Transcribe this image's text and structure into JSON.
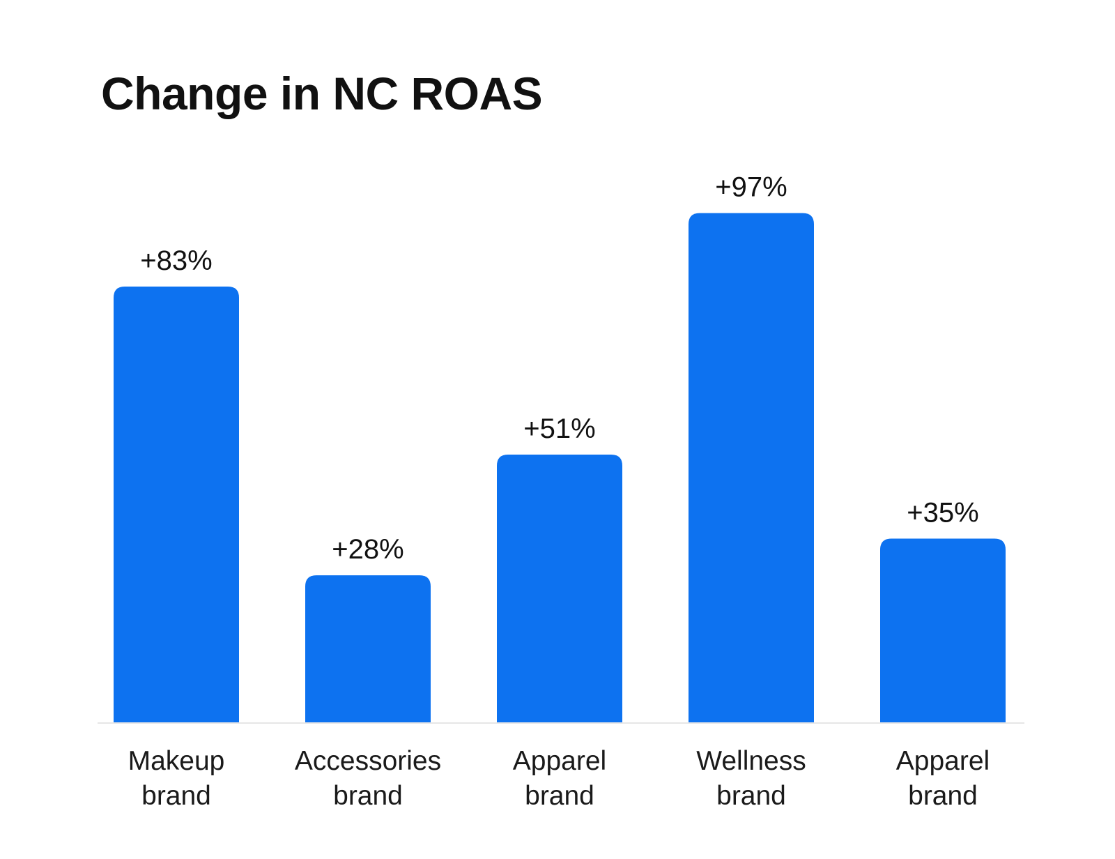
{
  "chart_data": {
    "type": "bar",
    "title": "Change in NC ROAS",
    "xlabel": "",
    "ylabel": "",
    "grid": false,
    "ylim": [
      0,
      100
    ],
    "colors": {
      "bar": "#0D72F0",
      "baseline": "#E6E6E6"
    },
    "categories": [
      [
        "Makeup",
        "brand"
      ],
      [
        "Accessories",
        "brand"
      ],
      [
        "Apparel",
        "brand"
      ],
      [
        "Wellness",
        "brand"
      ],
      [
        "Apparel",
        "brand"
      ]
    ],
    "values": [
      83,
      28,
      51,
      97,
      35
    ],
    "value_labels": [
      "+83%",
      "+28%",
      "+51%",
      "+97%",
      "+35%"
    ]
  }
}
